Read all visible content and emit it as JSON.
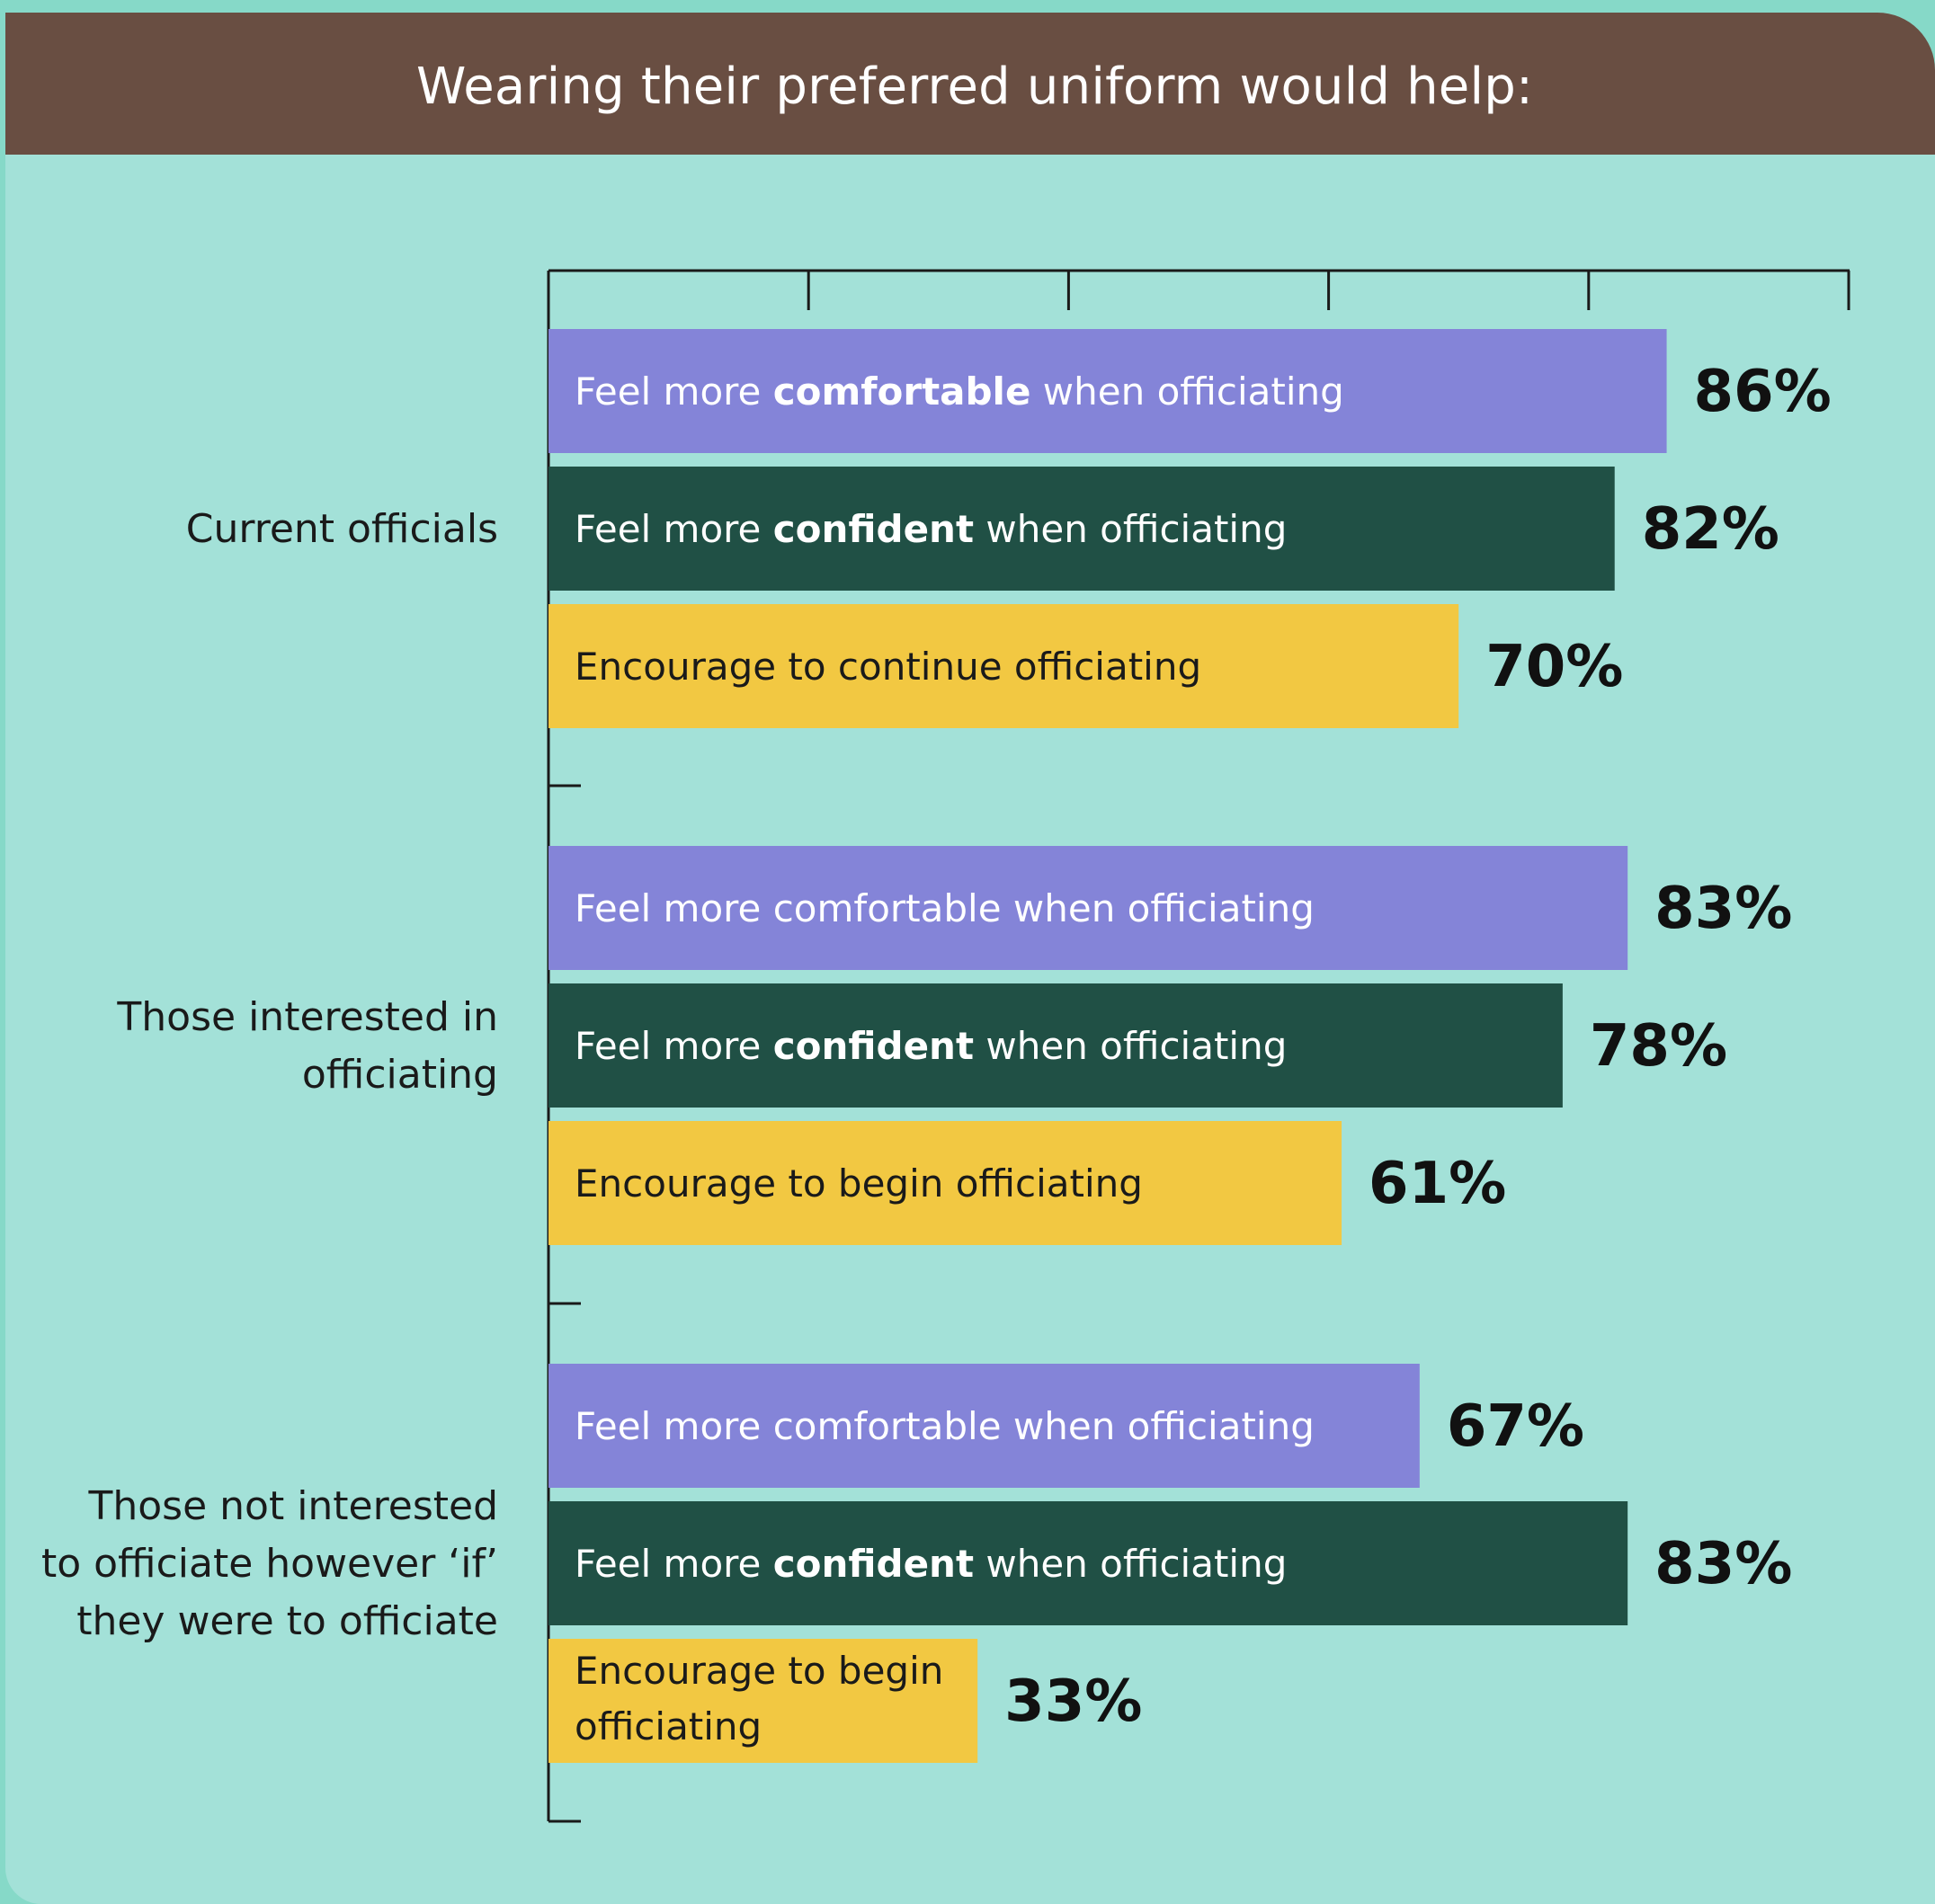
{
  "header": {
    "title": "Wearing their preferred uniform would help:"
  },
  "colors": {
    "page_border": "#86d9c8",
    "background": "#a3e1d8",
    "header": "#694e42",
    "comfortable": "#8484d8",
    "confident": "#205045",
    "encourage": "#f2c842",
    "axis": "#1a1a1a"
  },
  "chart_data": {
    "type": "bar",
    "orientation": "horizontal",
    "title": "Wearing their preferred uniform would help:",
    "value_unit": "%",
    "xlim": [
      0,
      100
    ],
    "x_tick_values": [
      0,
      20,
      40,
      60,
      80,
      100
    ],
    "x_tick_labels_shown": false,
    "grid": false,
    "legend": "none",
    "groups": [
      {
        "label": [
          "Current officials"
        ],
        "bars": [
          {
            "series": "comfortable",
            "label_parts": [
              {
                "text": "Feel more ",
                "bold": false
              },
              {
                "text": "comfortable",
                "bold": true
              },
              {
                "text": " when officiating",
                "bold": false
              }
            ],
            "value": 86,
            "value_label": "86%"
          },
          {
            "series": "confident",
            "label_parts": [
              {
                "text": "Feel more ",
                "bold": false
              },
              {
                "text": "confident",
                "bold": true
              },
              {
                "text": " when officiating",
                "bold": false
              }
            ],
            "value": 82,
            "value_label": "82%"
          },
          {
            "series": "encourage",
            "label_parts": [
              {
                "text": "Encourage to continue officiating",
                "bold": false
              }
            ],
            "value": 70,
            "value_label": "70%"
          }
        ]
      },
      {
        "label": [
          "Those interested in",
          "officiating"
        ],
        "bars": [
          {
            "series": "comfortable",
            "label_parts": [
              {
                "text": "Feel more comfortable when officiating",
                "bold": false
              }
            ],
            "value": 83,
            "value_label": "83%"
          },
          {
            "series": "confident",
            "label_parts": [
              {
                "text": "Feel more ",
                "bold": false
              },
              {
                "text": "confident",
                "bold": true
              },
              {
                "text": " when officiating",
                "bold": false
              }
            ],
            "value": 78,
            "value_label": "78%"
          },
          {
            "series": "encourage",
            "label_parts": [
              {
                "text": "Encourage to begin officiating",
                "bold": false
              }
            ],
            "value": 61,
            "value_label": "61%"
          }
        ]
      },
      {
        "label": [
          "Those not interested",
          "to officiate however ‘if’",
          "they were to officiate"
        ],
        "bars": [
          {
            "series": "comfortable",
            "label_parts": [
              {
                "text": "Feel more comfortable when officiating",
                "bold": false
              }
            ],
            "value": 67,
            "value_label": "67%"
          },
          {
            "series": "confident",
            "label_parts": [
              {
                "text": "Feel more ",
                "bold": false
              },
              {
                "text": "confident",
                "bold": true
              },
              {
                "text": " when officiating",
                "bold": false
              }
            ],
            "value": 83,
            "value_label": "83%"
          },
          {
            "series": "encourage",
            "label_lines": [
              "Encourage to begin",
              "officiating"
            ],
            "value": 33,
            "value_label": "33%"
          }
        ]
      }
    ]
  }
}
